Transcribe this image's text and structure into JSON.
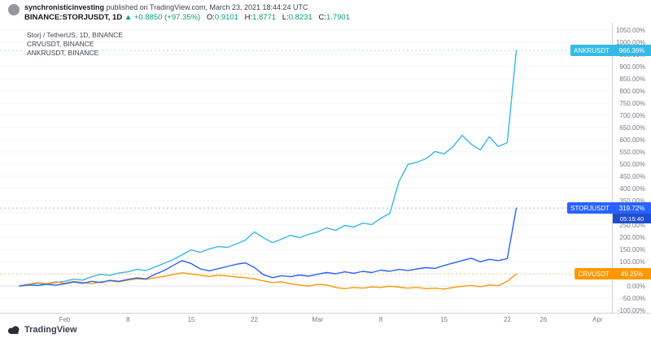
{
  "header": {
    "user": "synchronisticinvesting",
    "published": "published on TradingView.com, March 23, 2021 18:44:24 UTC",
    "symbol": "BINANCE:STORJUSDT, 1D",
    "arrow": "▲",
    "change": "+0.8850 (+97.35%)",
    "ohlc": [
      {
        "label": "O:",
        "value": "0.9101"
      },
      {
        "label": "H:",
        "value": "1.8771"
      },
      {
        "label": "L:",
        "value": "0.8231"
      },
      {
        "label": "C:",
        "value": "1.7901"
      }
    ]
  },
  "legend": [
    "Storj / TetherUS, 1D, BINANCE",
    "CRVUSDT, BINANCE",
    "ANKRUSDT, BINANCE"
  ],
  "footer": {
    "logo_text": "TradingView"
  },
  "colors": {
    "up_green": "#089981",
    "storj_blue": "#2962FF",
    "crv_orange": "#FF9800",
    "ankr_cyan": "#35B9E6",
    "countdown_bg": "#1F4FD1"
  },
  "chart_data": {
    "type": "line",
    "y_unit": "percent change",
    "grid": "horizontal",
    "legend_position": "top-left",
    "ylim": [
      -130,
      1080
    ],
    "y_ticks": [
      1050,
      1000,
      950,
      900,
      850,
      800,
      750,
      700,
      650,
      600,
      550,
      500,
      450,
      400,
      350,
      300,
      250,
      200,
      150,
      100,
      50,
      0,
      -50,
      -100
    ],
    "x_unit": "daily bars, index 0 = 2021-01-27, index 55 = 2021-03-23",
    "x_ticks": {
      "positions": [
        5,
        12,
        19,
        26,
        33,
        40,
        47,
        54,
        58,
        64
      ],
      "labels": [
        "Feb",
        "8",
        "15",
        "22",
        "Mar",
        "8",
        "15",
        "22",
        "26",
        "Apr"
      ]
    },
    "series": [
      {
        "name": "STORJUSDT",
        "color": "#2962FF",
        "last_label": "319.72%",
        "countdown": "05:15:40",
        "values": [
          0,
          4,
          2,
          7,
          3,
          9,
          16,
          11,
          19,
          14,
          23,
          19,
          27,
          33,
          29,
          48,
          63,
          84,
          104,
          92,
          70,
          62,
          71,
          80,
          89,
          95,
          76,
          46,
          34,
          42,
          38,
          45,
          40,
          48,
          55,
          50,
          58,
          52,
          60,
          55,
          65,
          60,
          68,
          63,
          70,
          75,
          72,
          84,
          94,
          104,
          114,
          99,
          109,
          104,
          112,
          319.72
        ]
      },
      {
        "name": "CRVUSDT",
        "color": "#FF9800",
        "last_label": "49.25%",
        "values": [
          0,
          7,
          14,
          9,
          17,
          11,
          19,
          14,
          9,
          17,
          21,
          17,
          24,
          29,
          27,
          34,
          39,
          47,
          54,
          49,
          44,
          39,
          44,
          41,
          37,
          34,
          29,
          21,
          14,
          17,
          9,
          4,
          -1,
          7,
          4,
          -6,
          -11,
          -6,
          -9,
          -4,
          -6,
          -1,
          -5,
          -9,
          -6,
          -11,
          -9,
          -13,
          -6,
          -1,
          2,
          -3,
          4,
          1,
          19,
          49.25
        ]
      },
      {
        "name": "ANKRUSDT",
        "color": "#35B9E6",
        "last_label": "966.36%",
        "values": [
          0,
          5,
          11,
          7,
          14,
          19,
          28,
          24,
          38,
          48,
          43,
          53,
          58,
          68,
          63,
          78,
          93,
          108,
          128,
          148,
          138,
          152,
          162,
          158,
          172,
          188,
          222,
          198,
          178,
          192,
          208,
          198,
          212,
          222,
          238,
          228,
          248,
          242,
          258,
          252,
          278,
          298,
          428,
          498,
          508,
          522,
          552,
          542,
          572,
          618,
          582,
          558,
          612,
          572,
          588,
          966.36
        ]
      }
    ]
  }
}
